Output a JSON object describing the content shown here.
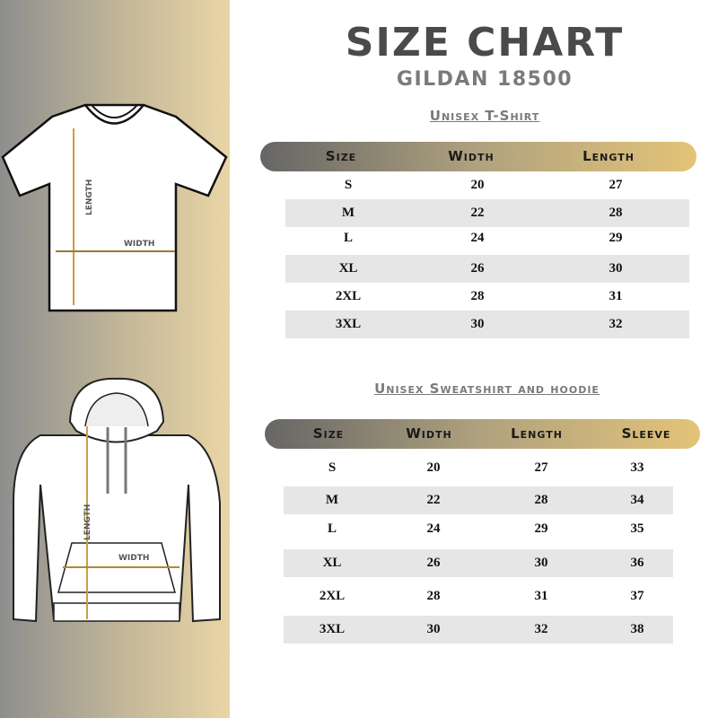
{
  "title": "SIZE CHART",
  "subtitle": "GILDAN 18500",
  "illustrations": {
    "tshirt": {
      "length_label": "LENGTH",
      "width_label": "WIDTH"
    },
    "hoodie": {
      "length_label": "LENGTH",
      "width_label": "WIDTH"
    }
  },
  "colors": {
    "accent_gold": "#d9a640",
    "dark": "#4a4a4a"
  },
  "tshirt_table": {
    "title": "Unisex T-Shirt",
    "headers": [
      "Size",
      "Width",
      "Length"
    ],
    "rows": [
      [
        "S",
        "20",
        "27"
      ],
      [
        "M",
        "22",
        "28"
      ],
      [
        "L",
        "24",
        "29"
      ],
      [
        "XL",
        "26",
        "30"
      ],
      [
        "2XL",
        "28",
        "31"
      ],
      [
        "3XL",
        "30",
        "32"
      ]
    ]
  },
  "hoodie_table": {
    "title": "Unisex Sweatshirt and hoodie",
    "headers": [
      "Size",
      "Width",
      "Length",
      "Sleeve"
    ],
    "rows": [
      [
        "S",
        "20",
        "27",
        "33"
      ],
      [
        "M",
        "22",
        "28",
        "34"
      ],
      [
        "L",
        "24",
        "29",
        "35"
      ],
      [
        "XL",
        "26",
        "30",
        "36"
      ],
      [
        "2XL",
        "28",
        "31",
        "37"
      ],
      [
        "3XL",
        "30",
        "32",
        "38"
      ]
    ]
  }
}
